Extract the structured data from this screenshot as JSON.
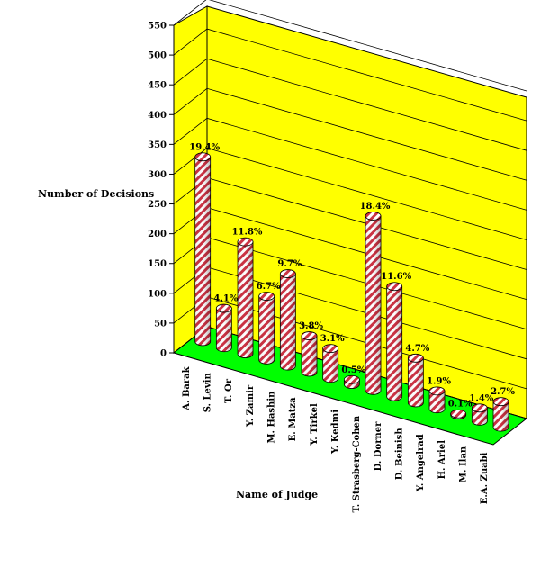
{
  "chart_data": {
    "type": "bar",
    "title": "",
    "xlabel": "Name of Judge",
    "ylabel": "Number of Decisions",
    "ylim": [
      0,
      550
    ],
    "y_ticks": [
      0,
      50,
      100,
      150,
      200,
      250,
      300,
      350,
      400,
      450,
      500,
      550
    ],
    "grid": true,
    "style": "3d-cylinder",
    "colors": {
      "wall": "#ffff00",
      "floor": "#00ff00",
      "bar_stripe_a": "#ffffff",
      "bar_stripe_b": "#cc3344"
    },
    "categories": [
      "A. Barak",
      "S. Levin",
      "T. Or",
      "Y. Zamir",
      "M. Hashin",
      "E. Matza",
      "Y. Tirkel",
      "Y. Kedmi",
      "T. Strasberg-Cohen",
      "D. Dorner",
      "D. Beinish",
      "Y. Angelrad",
      "H. Ariel",
      "M. Ilan",
      "E.A. Zuabi"
    ],
    "values": [
      310,
      66,
      188,
      107,
      155,
      61,
      50,
      8,
      293,
      185,
      75,
      30,
      2,
      22,
      43
    ],
    "data_labels": [
      "19.4%",
      "4.1%",
      "11.8%",
      "6.7%",
      "9.7%",
      "3.8%",
      "3.1%",
      "0.5%",
      "18.4%",
      "11.6%",
      "4.7%",
      "1.9%",
      "0.1%",
      "1.4%",
      "2.7%"
    ]
  }
}
